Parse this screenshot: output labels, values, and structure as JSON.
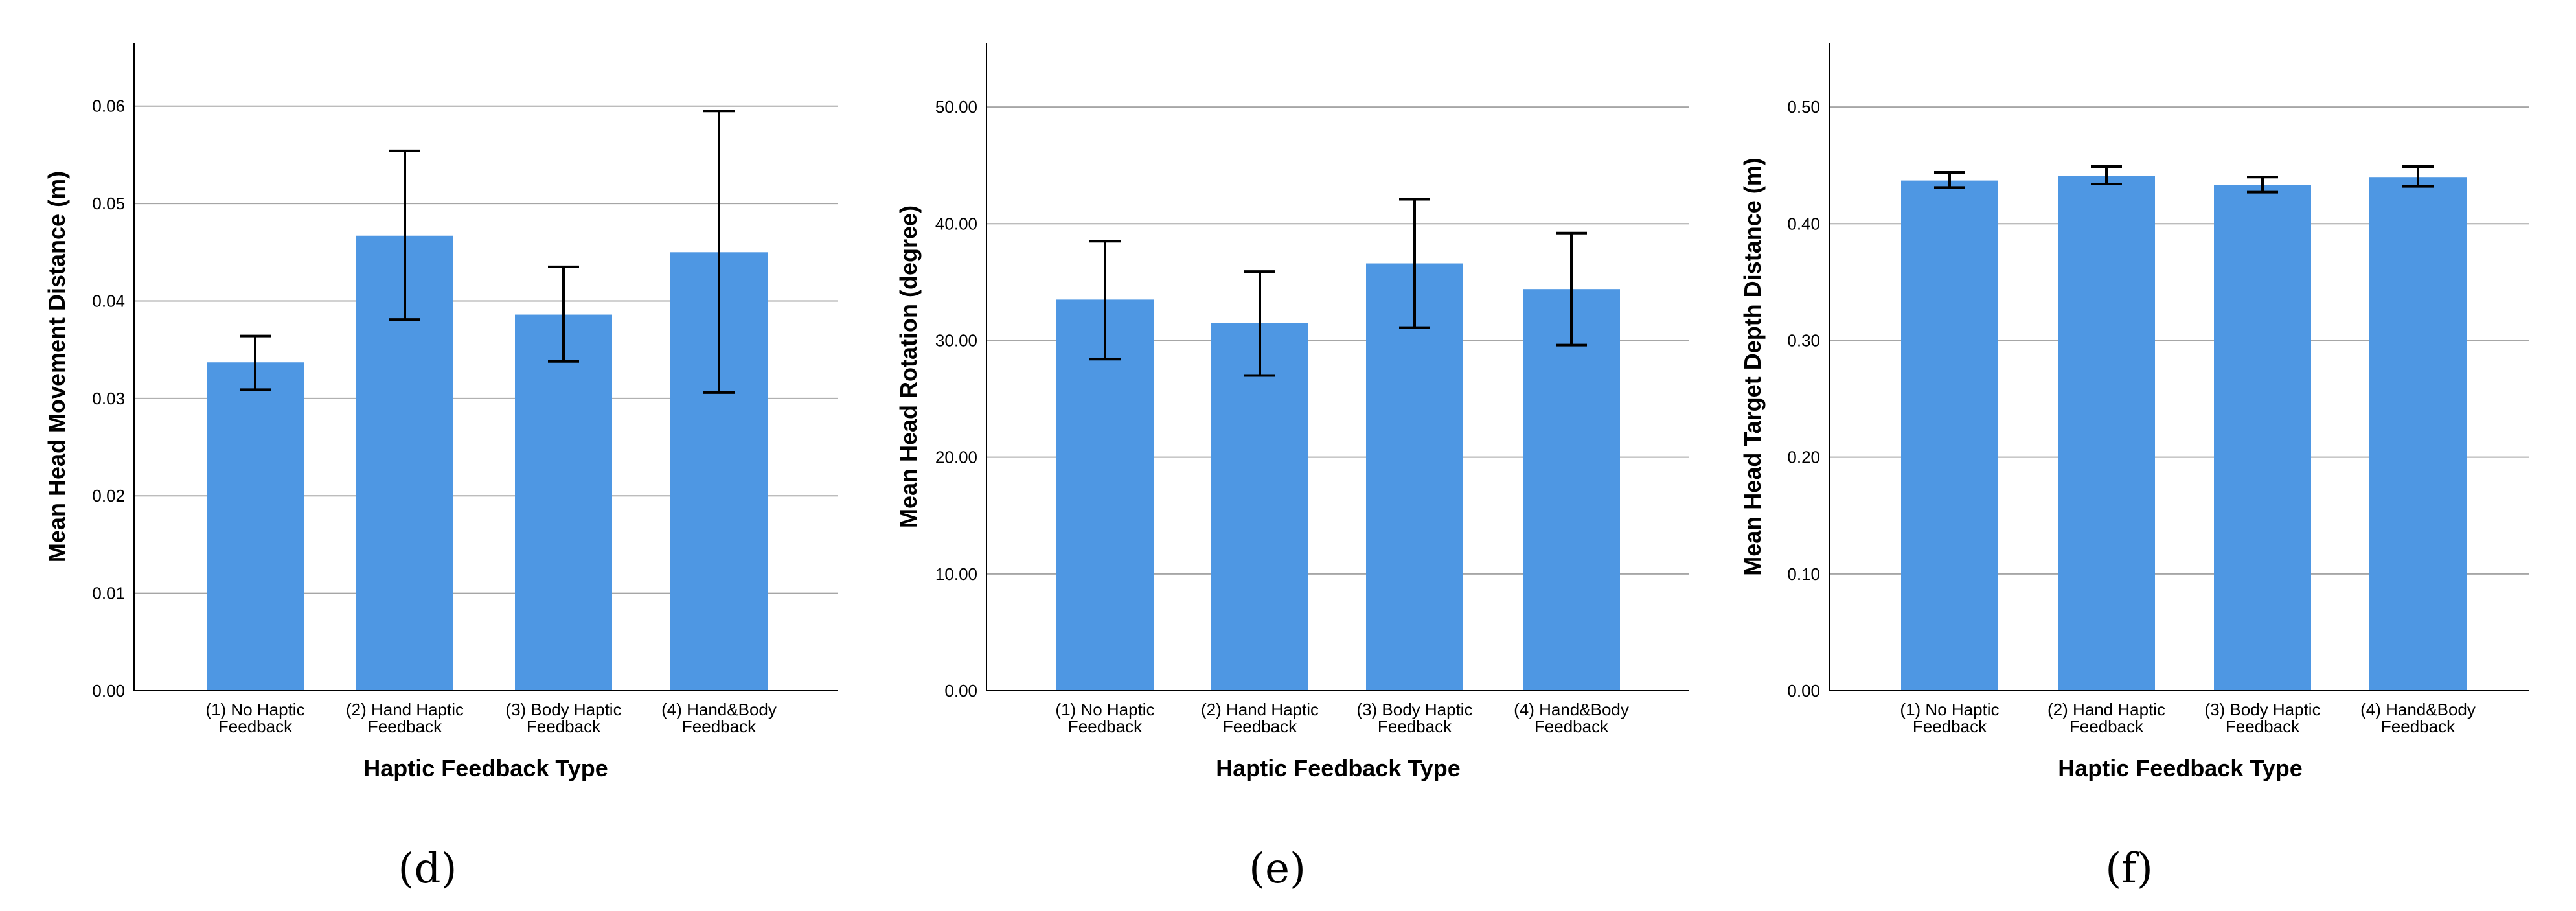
{
  "colors": {
    "bar": "#4E97E3",
    "grid": "#A6A6A6",
    "axis": "#000000"
  },
  "chart_data": [
    {
      "type": "bar",
      "panel": "(d)",
      "xlabel": "Haptic Feedback Type",
      "ylabel": "Mean Head Movement Distance (m)",
      "categories": [
        [
          "(1) No Haptic",
          "Feedback"
        ],
        [
          "(2) Hand Haptic",
          "Feedback"
        ],
        [
          "(3) Body Haptic",
          "Feedback"
        ],
        [
          "(4) Hand&Body",
          "Feedback"
        ]
      ],
      "values": [
        0.0337,
        0.0467,
        0.0386,
        0.045
      ],
      "error_low": [
        0.0309,
        0.0381,
        0.0338,
        0.0306
      ],
      "error_high": [
        0.0364,
        0.0554,
        0.0435,
        0.0595
      ],
      "ylim": [
        0,
        0.0665
      ],
      "yticks": [
        0.0,
        0.01,
        0.02,
        0.03,
        0.04,
        0.05,
        0.06
      ],
      "ytick_labels": [
        "0.00",
        "0.01",
        "0.02",
        "0.03",
        "0.04",
        "0.05",
        "0.06"
      ]
    },
    {
      "type": "bar",
      "panel": "(e)",
      "xlabel": "Haptic Feedback Type",
      "ylabel": "Mean Head Rotation (degree)",
      "categories": [
        [
          "(1) No Haptic",
          "Feedback"
        ],
        [
          "(2) Hand Haptic",
          "Feedback"
        ],
        [
          "(3) Body Haptic",
          "Feedback"
        ],
        [
          "(4) Hand&Body",
          "Feedback"
        ]
      ],
      "values": [
        33.5,
        31.5,
        36.6,
        34.4
      ],
      "error_low": [
        28.4,
        27.0,
        31.1,
        29.6
      ],
      "error_high": [
        38.5,
        35.9,
        42.1,
        39.2
      ],
      "ylim": [
        0,
        55.5
      ],
      "yticks": [
        0,
        10,
        20,
        30,
        40,
        50
      ],
      "ytick_labels": [
        "0.00",
        "10.00",
        "20.00",
        "30.00",
        "40.00",
        "50.00"
      ]
    },
    {
      "type": "bar",
      "panel": "(f)",
      "xlabel": "Haptic Feedback Type",
      "ylabel": "Mean Head Target Depth Distance (m)",
      "categories": [
        [
          "(1) No Haptic",
          "Feedback"
        ],
        [
          "(2) Hand Haptic",
          "Feedback"
        ],
        [
          "(3) Body Haptic",
          "Feedback"
        ],
        [
          "(4) Hand&Body",
          "Feedback"
        ]
      ],
      "values": [
        0.437,
        0.441,
        0.433,
        0.44
      ],
      "error_low": [
        0.431,
        0.434,
        0.427,
        0.432
      ],
      "error_high": [
        0.444,
        0.449,
        0.44,
        0.449
      ],
      "ylim": [
        0,
        0.555
      ],
      "yticks": [
        0.0,
        0.1,
        0.2,
        0.3,
        0.4,
        0.5
      ],
      "ytick_labels": [
        "0.00",
        "0.10",
        "0.20",
        "0.30",
        "0.40",
        "0.50"
      ]
    }
  ]
}
